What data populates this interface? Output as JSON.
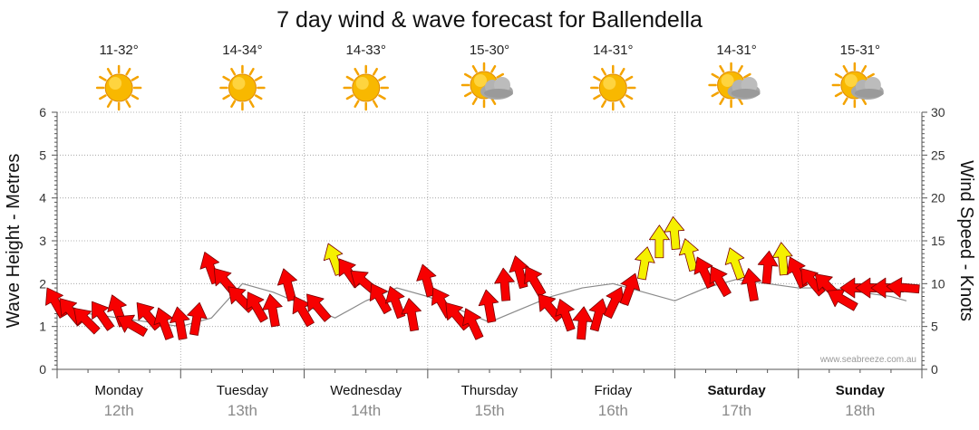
{
  "chart_data": {
    "type": "line",
    "title": "7 day wind & wave forecast for Ballendella",
    "ylabel_left": "Wave Height - Metres",
    "ylabel_right": "Wind Speed - Knots",
    "left_ticks": [
      "0",
      "1",
      "2",
      "3",
      "4",
      "5",
      "6"
    ],
    "right_ticks": [
      "0",
      "5",
      "10",
      "15",
      "20",
      "25",
      "30"
    ],
    "ylim_left": [
      0,
      6
    ],
    "ylim_right": [
      0,
      30
    ],
    "watermark": "www.seabreeze.com.au",
    "days": [
      {
        "day": "Monday",
        "date": "12th",
        "temp": "11-32°",
        "icon": "sun-icon",
        "bold": false
      },
      {
        "day": "Tuesday",
        "date": "13th",
        "temp": "14-34°",
        "icon": "sun-icon",
        "bold": false
      },
      {
        "day": "Wednesday",
        "date": "14th",
        "temp": "14-33°",
        "icon": "sun-icon",
        "bold": false
      },
      {
        "day": "Thursday",
        "date": "15th",
        "temp": "15-30°",
        "icon": "partly-cloudy-icon",
        "bold": false
      },
      {
        "day": "Friday",
        "date": "16th",
        "temp": "14-31°",
        "icon": "sun-icon",
        "bold": false
      },
      {
        "day": "Saturday",
        "date": "17th",
        "temp": "14-31°",
        "icon": "partly-cloudy-icon",
        "bold": true
      },
      {
        "day": "Sunday",
        "date": "18th",
        "temp": "15-31°",
        "icon": "partly-cloudy-icon",
        "bold": true
      }
    ],
    "wind_series": {
      "name": "Wind Speed",
      "x_hours": [
        0,
        3,
        6,
        9,
        12,
        15,
        18,
        21,
        24,
        27,
        30,
        33,
        36,
        39,
        42,
        45,
        48,
        51,
        54,
        57,
        60,
        63,
        66,
        69,
        72,
        75,
        78,
        81,
        84,
        87,
        90,
        93,
        96,
        99,
        102,
        105,
        108,
        111,
        114,
        117,
        120,
        123,
        126,
        129,
        132,
        135,
        138,
        141,
        144,
        147,
        150,
        153,
        156,
        159,
        162,
        165
      ],
      "knots": [
        7.5,
        6.5,
        5.5,
        6,
        6.5,
        5,
        6,
        5,
        5,
        5.5,
        11.5,
        10,
        8,
        7,
        6.5,
        9.5,
        6.5,
        7,
        12.5,
        11,
        10,
        8,
        7.5,
        6,
        10,
        7.5,
        6,
        5,
        7,
        9.5,
        11,
        10,
        7,
        6,
        5,
        6,
        7.5,
        9,
        12,
        14.5,
        15.5,
        13,
        11,
        10,
        12,
        9.5,
        11.5,
        12.5,
        11,
        10,
        9.5,
        8,
        9.5,
        9.5,
        9.5,
        9.5
      ],
      "directions_deg": [
        330,
        320,
        315,
        325,
        340,
        300,
        320,
        340,
        350,
        10,
        340,
        320,
        315,
        330,
        350,
        345,
        330,
        320,
        340,
        325,
        310,
        330,
        340,
        350,
        345,
        330,
        320,
        335,
        350,
        355,
        345,
        330,
        320,
        340,
        5,
        15,
        25,
        20,
        10,
        0,
        355,
        345,
        335,
        330,
        340,
        350,
        5,
        355,
        335,
        320,
        315,
        300,
        270,
        270,
        270,
        275
      ],
      "colour_low": "#f70000",
      "colour_high": "#f5f000",
      "threshold_knots": 12
    },
    "wave_series": {
      "name": "Wave Height",
      "x_hours": [
        0,
        6,
        12,
        18,
        24,
        30,
        36,
        42,
        48,
        54,
        60,
        66,
        72,
        78,
        84,
        90,
        96,
        102,
        108,
        114,
        120,
        126,
        132,
        138,
        144,
        150,
        156,
        162,
        165
      ],
      "metres": [
        1.6,
        1.3,
        1.2,
        1.1,
        1.0,
        1.2,
        2.0,
        1.8,
        1.5,
        1.2,
        1.6,
        1.9,
        1.7,
        1.4,
        1.1,
        1.4,
        1.7,
        1.9,
        2.0,
        1.8,
        1.6,
        1.9,
        2.1,
        2.0,
        1.9,
        1.9,
        1.8,
        1.7,
        1.6
      ]
    }
  }
}
